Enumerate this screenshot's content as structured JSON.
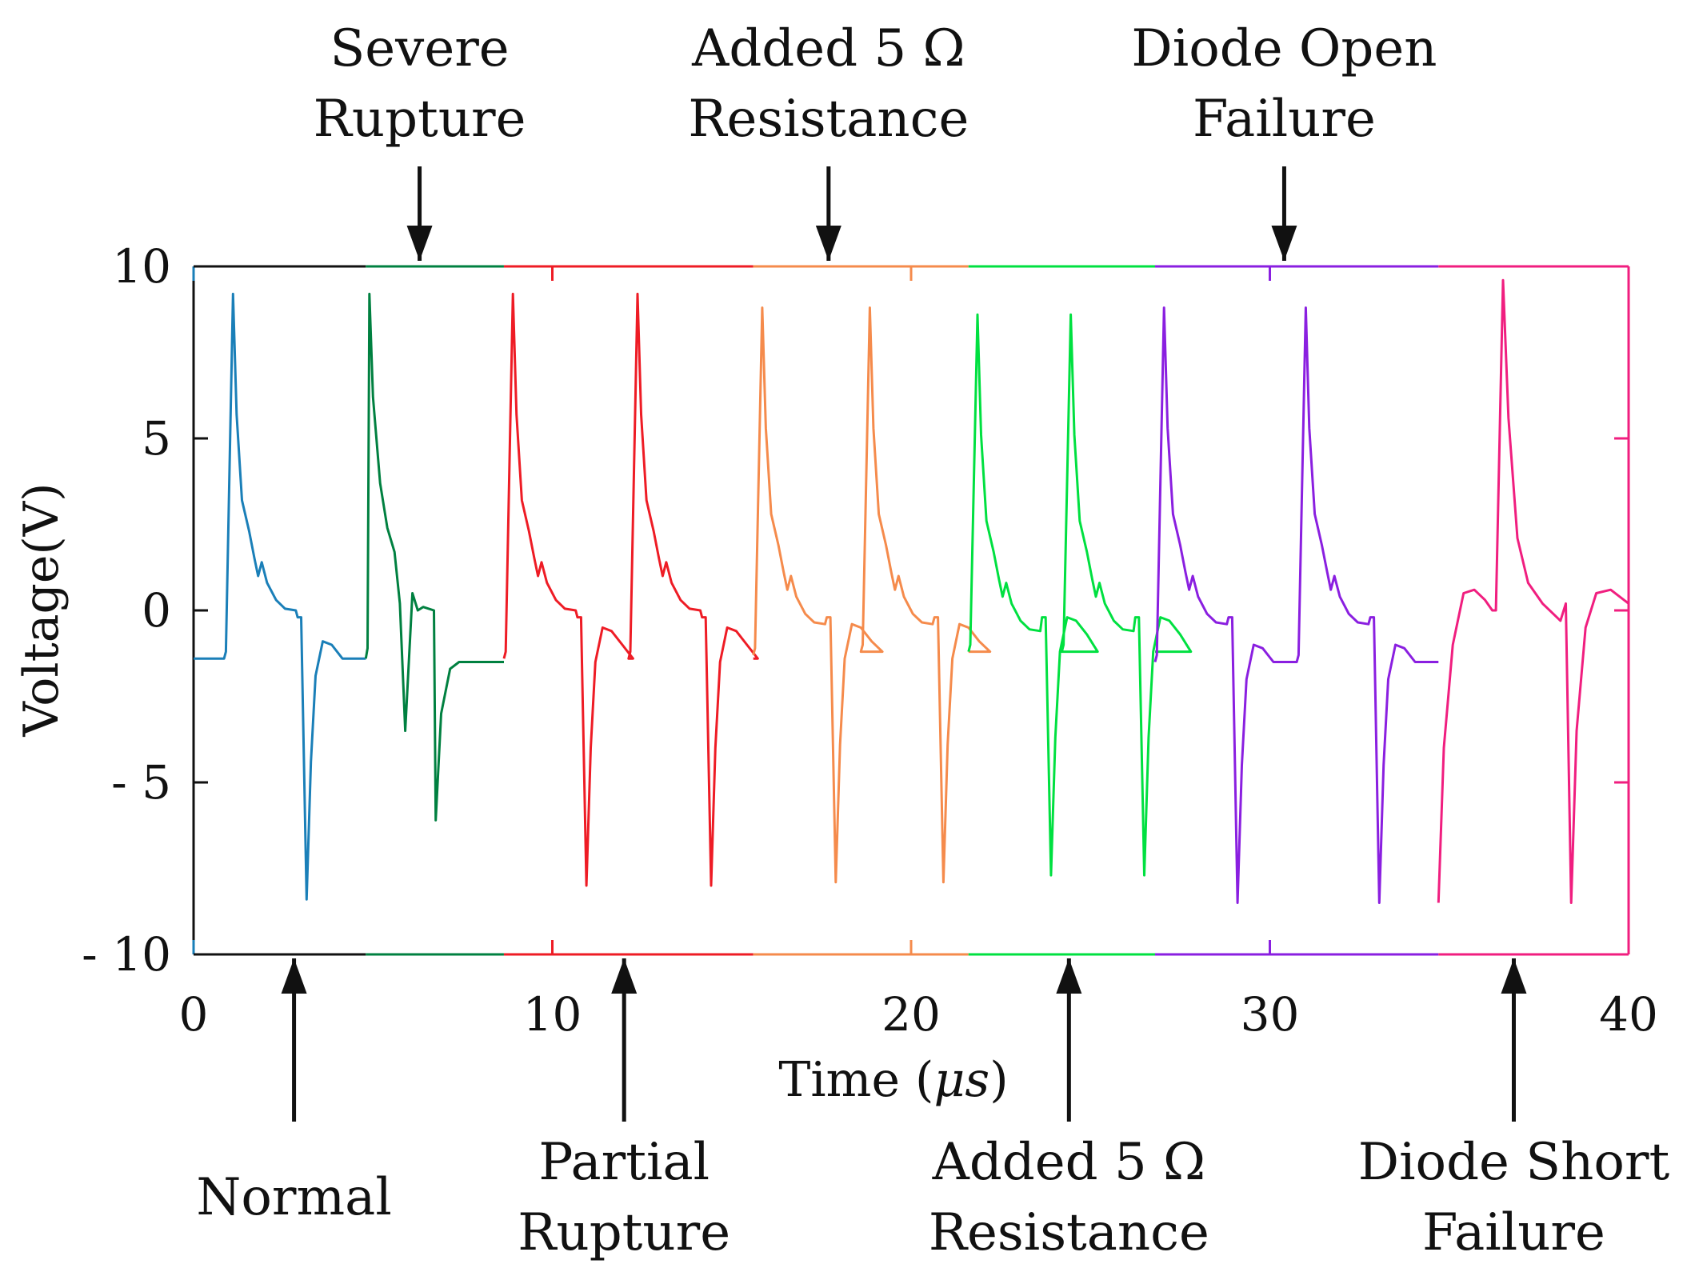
{
  "chart_data": {
    "type": "line",
    "title": "",
    "xlabel_main": "Time (",
    "xlabel_unit": "μs",
    "xlabel_close": ")",
    "ylabel": "Voltage(V)",
    "xlim": [
      0,
      40
    ],
    "ylim": [
      -10,
      10
    ],
    "x_ticks": [
      0,
      10,
      20,
      30,
      40
    ],
    "y_ticks": [
      10,
      5,
      0,
      -5,
      -10
    ],
    "y_tick_labels": [
      "10",
      "5",
      "0",
      "- 5",
      "- 10"
    ],
    "grid": false,
    "segments": [
      {
        "name": "Normal",
        "color": "#1a7fb8",
        "x_start": 0.0,
        "x_end": 4.8,
        "peak": 9.2,
        "trough": -8.4,
        "pre_level": -1.4,
        "post_level": -1.4
      },
      {
        "name": "Severe Rupture",
        "color": "#008040",
        "x_start": 4.8,
        "x_end": 8.65,
        "peak": 9.2,
        "trough": -6.1,
        "dip1": -3.5,
        "pre_level": -1.4,
        "post_level": -1.5
      },
      {
        "name": "Partial Rupture",
        "color": "#ee1c25",
        "x_start": 8.65,
        "x_end": 15.6,
        "peak": 9.2,
        "trough": -8.0,
        "pre_level": -1.4,
        "post_level": -1.4
      },
      {
        "name": "Added 5 Ω Resistance",
        "color": "#f58b4c",
        "x_start": 15.6,
        "x_end": 21.6,
        "peak": 8.8,
        "trough": -7.9,
        "pre_level": -1.3,
        "post_level": -1.2
      },
      {
        "name": "Added 5 Ω Resistance",
        "color": "#00e040",
        "x_start": 21.6,
        "x_end": 26.8,
        "peak": 8.6,
        "trough": -7.7,
        "pre_level": -1.2,
        "post_level": -1.2
      },
      {
        "name": "Diode Open Failure",
        "color": "#8a1fe0",
        "x_start": 26.8,
        "x_end": 34.7,
        "peak": 8.8,
        "trough": -8.5,
        "pre_level": -1.5,
        "post_level": -1.5
      },
      {
        "name": "Diode Short Failure",
        "color": "#f01e7f",
        "x_start": 34.7,
        "x_end": 40.0,
        "peak": 9.6,
        "trough": -8.5,
        "pre_level": 0.0,
        "post_level": 0.2
      }
    ],
    "annotations_top": [
      {
        "lines": [
          "Severe",
          "Rupture"
        ],
        "x": 6.3
      },
      {
        "lines": [
          "Added  5 Ω",
          "Resistance"
        ],
        "x": 17.7
      },
      {
        "lines": [
          "Diode Open",
          "Failure"
        ],
        "x": 30.4
      }
    ],
    "annotations_bottom": [
      {
        "lines": [
          "Normal"
        ],
        "x": 2.8
      },
      {
        "lines": [
          "Partial",
          "Rupture"
        ],
        "x": 12.0
      },
      {
        "lines": [
          "Added  5 Ω",
          "Resistance"
        ],
        "x": 24.4
      },
      {
        "lines": [
          "Diode Short",
          "Failure"
        ],
        "x": 36.8
      }
    ]
  }
}
